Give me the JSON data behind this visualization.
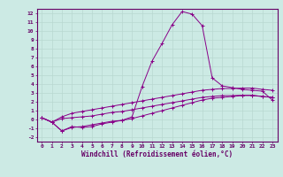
{
  "xlabel": "Windchill (Refroidissement éolien,°C)",
  "background_color": "#cceae4",
  "line_color": "#880088",
  "grid_color": "#aaccC4",
  "xlim": [
    -0.5,
    23.5
  ],
  "ylim": [
    -2.5,
    12.5
  ],
  "xticks": [
    0,
    1,
    2,
    3,
    4,
    5,
    6,
    7,
    8,
    9,
    10,
    11,
    12,
    13,
    14,
    15,
    16,
    17,
    18,
    19,
    20,
    21,
    22,
    23
  ],
  "yticks": [
    -2,
    -1,
    0,
    1,
    2,
    3,
    4,
    5,
    6,
    7,
    8,
    9,
    10,
    11,
    12
  ],
  "lines": [
    {
      "x": [
        0,
        1,
        2,
        3,
        4,
        5,
        6,
        7,
        8,
        9,
        10,
        11,
        12,
        13,
        14,
        15,
        16,
        17,
        18,
        19,
        20,
        21,
        22,
        23
      ],
      "y": [
        0.2,
        -0.3,
        0.3,
        0.7,
        0.9,
        1.1,
        1.3,
        1.5,
        1.7,
        1.9,
        2.1,
        2.3,
        2.5,
        2.7,
        2.9,
        3.1,
        3.3,
        3.4,
        3.5,
        3.5,
        3.55,
        3.55,
        3.4,
        3.3
      ]
    },
    {
      "x": [
        0,
        1,
        2,
        3,
        4,
        5,
        6,
        7,
        8,
        9,
        10,
        11,
        12,
        13,
        14,
        15,
        16,
        17,
        18,
        19,
        20,
        21,
        22,
        23
      ],
      "y": [
        0.2,
        -0.3,
        0.1,
        0.2,
        0.3,
        0.4,
        0.6,
        0.8,
        0.9,
        1.1,
        1.3,
        1.5,
        1.7,
        1.9,
        2.1,
        2.3,
        2.5,
        2.6,
        2.7,
        2.7,
        2.75,
        2.75,
        2.6,
        2.5
      ]
    },
    {
      "x": [
        0,
        1,
        2,
        3,
        4,
        5,
        6,
        7,
        8,
        9,
        10,
        11,
        12,
        13,
        14,
        15,
        16,
        17,
        18,
        19,
        20,
        21,
        22,
        23
      ],
      "y": [
        0.2,
        -0.3,
        -1.3,
        -0.9,
        -0.8,
        -0.6,
        -0.4,
        -0.2,
        -0.1,
        0.1,
        0.4,
        0.7,
        1.0,
        1.3,
        1.6,
        1.9,
        2.2,
        2.4,
        2.5,
        2.6,
        2.7,
        2.7,
        2.6,
        2.5
      ]
    },
    {
      "x": [
        0,
        1,
        2,
        3,
        4,
        5,
        6,
        7,
        8,
        9,
        10,
        11,
        12,
        13,
        14,
        15,
        16,
        17,
        18,
        19,
        20,
        21,
        22,
        23
      ],
      "y": [
        0.2,
        -0.3,
        -1.3,
        -0.8,
        -0.9,
        -0.8,
        -0.5,
        -0.3,
        -0.1,
        0.3,
        3.7,
        6.6,
        8.6,
        10.7,
        12.2,
        11.9,
        10.6,
        4.7,
        3.8,
        3.6,
        3.4,
        3.3,
        3.2,
        2.2
      ]
    }
  ]
}
